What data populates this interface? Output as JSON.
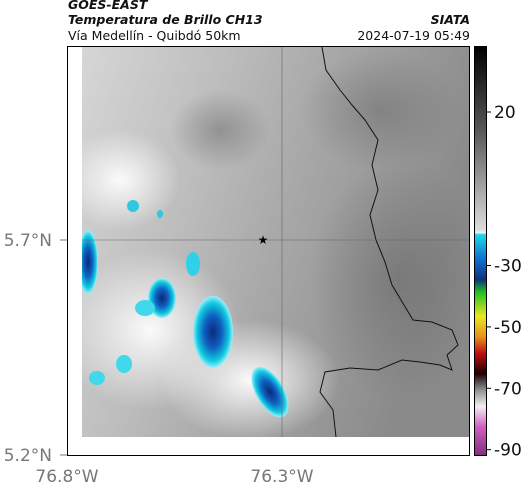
{
  "header": {
    "source": "GOES-EAST",
    "title": "Temperatura de Brillo CH13",
    "region": "Vía Medellín - Quibdó 50km",
    "org": "SIATA",
    "datetime": "2024-07-19 05:49"
  },
  "map": {
    "lat_ticks": [
      "5.7°N",
      "5.2°N"
    ],
    "lon_ticks": [
      "76.8°W",
      "76.3°W"
    ]
  },
  "colorbar": {
    "ticks": [
      20,
      -30,
      -50,
      -70,
      -90
    ]
  }
}
